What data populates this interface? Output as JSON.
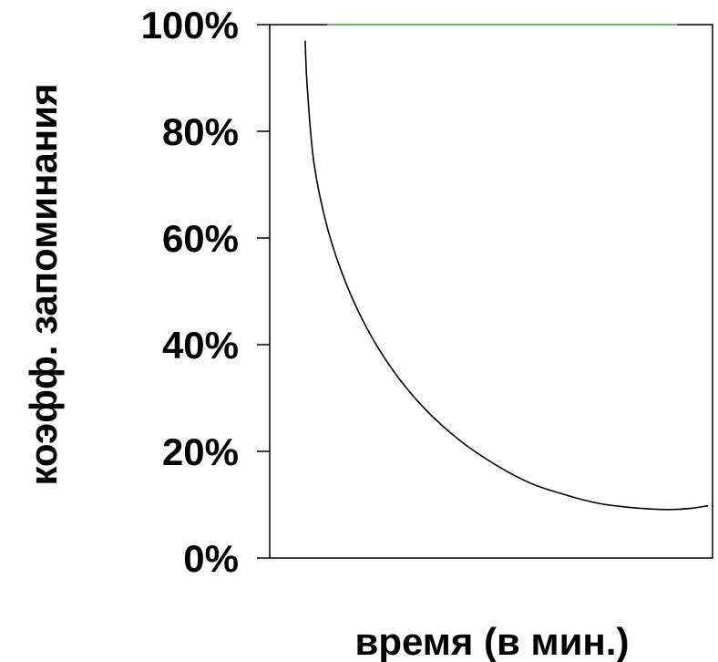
{
  "chart_data": {
    "type": "line",
    "title": "",
    "xlabel": "время (в мин.)",
    "ylabel": "коэфф. запоминания",
    "ylim": [
      0,
      100
    ],
    "y_ticks": [
      0,
      20,
      40,
      60,
      80,
      100
    ],
    "y_tick_labels": [
      "0%",
      "20%",
      "40%",
      "60%",
      "80%",
      "100%"
    ],
    "x_ticks_shown": false,
    "grid": false,
    "legend": "none",
    "xlim": [
      0,
      1
    ],
    "series": [
      {
        "color": "#000000",
        "x": [
          0.08,
          0.085,
          0.1,
          0.13,
          0.17,
          0.22,
          0.28,
          0.35,
          0.43,
          0.51,
          0.59,
          0.67,
          0.74,
          0.8,
          0.86,
          0.91,
          0.95,
          0.99
        ],
        "y": [
          97,
          88,
          74,
          62,
          52,
          43,
          35,
          28,
          22,
          17.5,
          14,
          11.8,
          10.3,
          9.6,
          9.2,
          9.1,
          9.3,
          9.8
        ]
      },
      {
        "color": "#6cc46c",
        "x": [
          0.13,
          0.92
        ],
        "y": [
          100,
          100
        ]
      }
    ]
  }
}
